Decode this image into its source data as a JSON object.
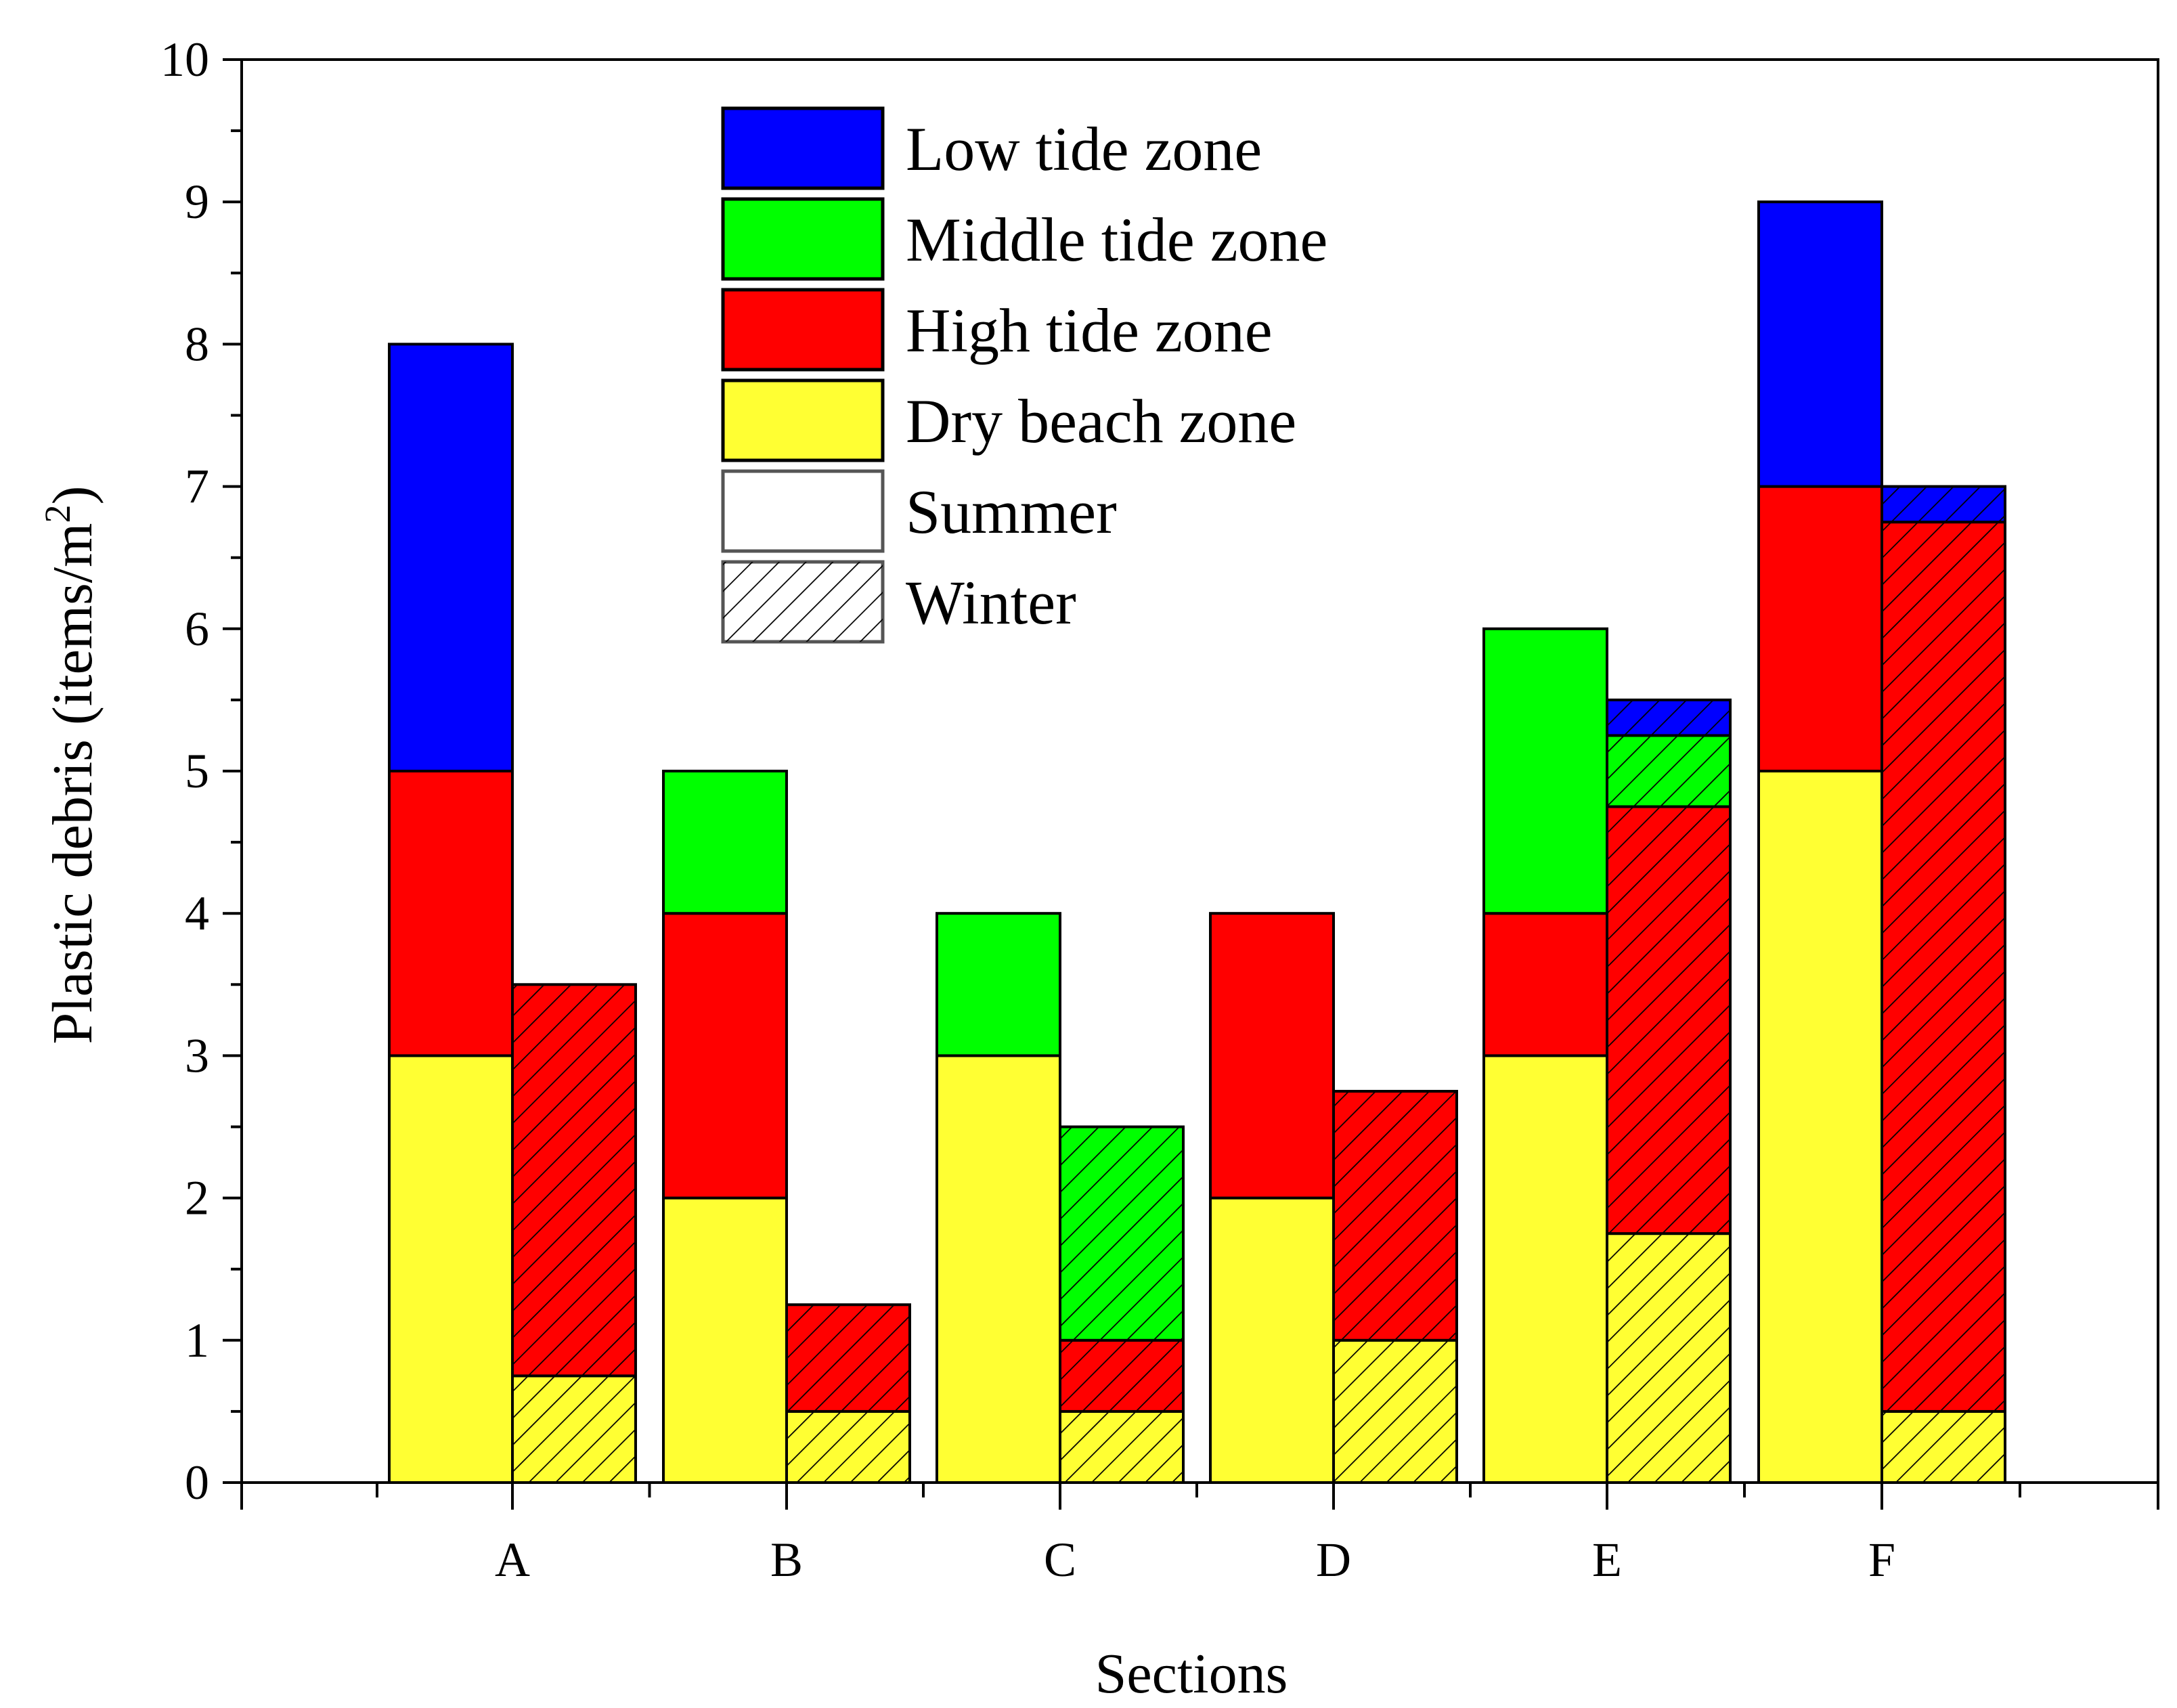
{
  "colors": {
    "Low tide zone": "#0000FF",
    "Middle tide zone": "#00FF00",
    "High tide zone": "#FF0000",
    "Dry beach zone": "#FFFF33",
    "hatch": "#000000"
  },
  "chart_data": {
    "type": "bar",
    "stacked": true,
    "grouped": true,
    "xlabel": "Sections",
    "ylabel": "Plastic debris (items/m",
    "ylabel_sup": "2",
    "ylabel_end": ")",
    "ylim": [
      0,
      10
    ],
    "yticks": [
      "0",
      "1",
      "2",
      "3",
      "4",
      "5",
      "6",
      "7",
      "8",
      "9",
      "10"
    ],
    "categories": [
      "A",
      "B",
      "C",
      "D",
      "E",
      "F"
    ],
    "groups": [
      "Summer",
      "Winter"
    ],
    "zones": [
      "Dry beach zone",
      "High tide zone",
      "Middle tide zone",
      "Low tide zone"
    ],
    "series": [
      {
        "group": "Summer",
        "zone": "Dry beach zone",
        "values": [
          3,
          2,
          3,
          2,
          3,
          5
        ]
      },
      {
        "group": "Summer",
        "zone": "High tide zone",
        "values": [
          2,
          2,
          0,
          2,
          1,
          2
        ]
      },
      {
        "group": "Summer",
        "zone": "Middle tide zone",
        "values": [
          0,
          1,
          1,
          0,
          2,
          0
        ]
      },
      {
        "group": "Summer",
        "zone": "Low tide zone",
        "values": [
          3,
          0,
          0,
          0,
          0,
          2
        ]
      },
      {
        "group": "Winter",
        "zone": "Dry beach zone",
        "values": [
          0.75,
          0.5,
          0.5,
          1,
          1.75,
          0.5
        ]
      },
      {
        "group": "Winter",
        "zone": "High tide zone",
        "values": [
          2.75,
          0.75,
          0.5,
          1.75,
          3,
          6.25
        ]
      },
      {
        "group": "Winter",
        "zone": "Middle tide zone",
        "values": [
          0,
          0,
          1.5,
          0,
          0.5,
          0
        ]
      },
      {
        "group": "Winter",
        "zone": "Low tide zone",
        "values": [
          0,
          0,
          0,
          0,
          0.25,
          0.25
        ]
      }
    ],
    "legend": {
      "position": "top-center",
      "entries": [
        {
          "label": "Low tide zone",
          "swatch": "Low tide zone",
          "hatched": false
        },
        {
          "label": "Middle tide zone",
          "swatch": "Middle tide zone",
          "hatched": false
        },
        {
          "label": "High tide zone",
          "swatch": "High tide zone",
          "hatched": false
        },
        {
          "label": "Dry beach zone",
          "swatch": "Dry beach zone",
          "hatched": false
        },
        {
          "label": "Summer",
          "swatch": "none",
          "hatched": false
        },
        {
          "label": "Winter",
          "swatch": "none",
          "hatched": true
        }
      ]
    }
  }
}
